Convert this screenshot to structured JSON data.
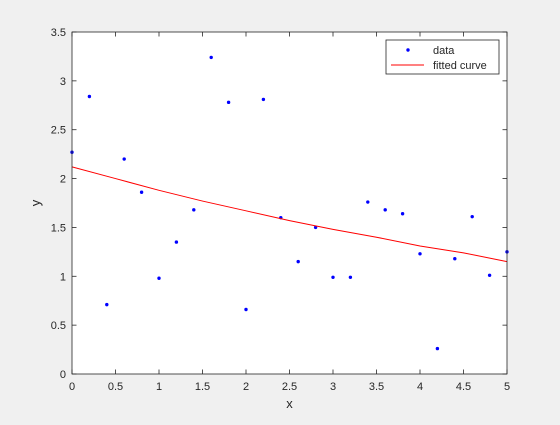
{
  "chart_data": {
    "type": "scatter",
    "title": "",
    "xlabel": "x",
    "ylabel": "y",
    "xlim": [
      0,
      5
    ],
    "ylim": [
      0,
      3.5
    ],
    "xticks": [
      0,
      0.5,
      1,
      1.5,
      2,
      2.5,
      3,
      3.5,
      4,
      4.5,
      5
    ],
    "yticks": [
      0,
      0.5,
      1,
      1.5,
      2,
      2.5,
      3,
      3.5
    ],
    "grid": false,
    "legend_position": "top-right",
    "series": [
      {
        "name": "data",
        "kind": "points",
        "color": "#0000ff",
        "x": [
          0,
          0.2,
          0.4,
          0.6,
          0.8,
          1.0,
          1.2,
          1.4,
          1.6,
          1.8,
          2.0,
          2.2,
          2.4,
          2.6,
          2.8,
          3.0,
          3.2,
          3.4,
          3.6,
          3.8,
          4.0,
          4.2,
          4.4,
          4.6,
          4.8,
          5.0
        ],
        "y": [
          2.27,
          2.84,
          0.71,
          2.2,
          1.86,
          0.98,
          1.35,
          1.68,
          3.24,
          2.78,
          0.66,
          2.81,
          1.6,
          1.15,
          1.5,
          0.99,
          0.99,
          1.76,
          1.68,
          1.64,
          1.23,
          0.26,
          1.18,
          1.61,
          1.01,
          1.25
        ]
      },
      {
        "name": "fitted curve",
        "kind": "line",
        "color": "#ff0000",
        "x": [
          0,
          0.5,
          1,
          1.5,
          2,
          2.5,
          3,
          3.5,
          4,
          4.5,
          5
        ],
        "y": [
          2.12,
          2.0,
          1.88,
          1.77,
          1.67,
          1.57,
          1.48,
          1.4,
          1.31,
          1.24,
          1.15
        ]
      }
    ]
  }
}
